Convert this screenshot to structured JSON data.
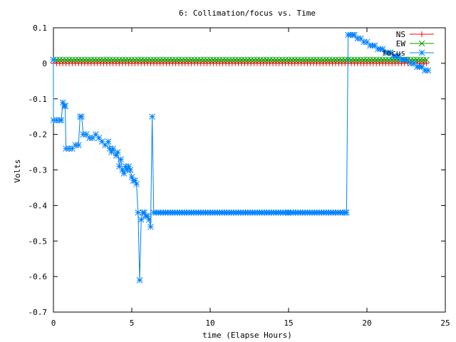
{
  "chart_data": {
    "type": "line",
    "title": "6: Collimation/focus vs. Time",
    "xlabel": "time (Elapse Hours)",
    "ylabel": "Volts",
    "xlim": [
      0,
      25
    ],
    "ylim": [
      -0.7,
      0.1
    ],
    "x_ticks": [
      0,
      5,
      10,
      15,
      20,
      25
    ],
    "x_tick_labels": [
      "0",
      "5",
      "10",
      "15",
      "20",
      "25"
    ],
    "y_ticks": [
      0.1,
      0,
      -0.1,
      -0.2,
      -0.3,
      -0.4,
      -0.5,
      -0.6,
      -0.7
    ],
    "y_tick_labels": [
      "0.1",
      "0",
      "-0.1",
      "-0.2",
      "-0.3",
      "-0.4",
      "-0.5",
      "-0.6",
      "-0.7"
    ],
    "grid": false,
    "legend_position": "top-right",
    "series": [
      {
        "name": "NS",
        "color": "#ff0000",
        "marker": "plus",
        "x": [
          0.0,
          23.9
        ],
        "y": [
          0.0,
          0.0
        ],
        "marker_step": 0.2
      },
      {
        "name": "EW",
        "color": "#00a000",
        "marker": "cross",
        "x": [
          0.0,
          23.9
        ],
        "y": [
          0.01,
          0.01
        ],
        "marker_step": 0.2
      },
      {
        "name": "focus",
        "color": "#0080ff",
        "marker": "star",
        "points": [
          [
            0.0,
            0.01
          ],
          [
            0.0,
            -0.16
          ],
          [
            0.2,
            -0.16
          ],
          [
            0.4,
            -0.16
          ],
          [
            0.5,
            -0.16
          ],
          [
            0.6,
            -0.11
          ],
          [
            0.7,
            -0.12
          ],
          [
            0.75,
            -0.12
          ],
          [
            0.8,
            -0.24
          ],
          [
            1.0,
            -0.24
          ],
          [
            1.2,
            -0.24
          ],
          [
            1.4,
            -0.23
          ],
          [
            1.6,
            -0.23
          ],
          [
            1.7,
            -0.15
          ],
          [
            1.8,
            -0.15
          ],
          [
            1.9,
            -0.2
          ],
          [
            2.1,
            -0.2
          ],
          [
            2.3,
            -0.21
          ],
          [
            2.5,
            -0.21
          ],
          [
            2.7,
            -0.2
          ],
          [
            2.9,
            -0.21
          ],
          [
            3.1,
            -0.22
          ],
          [
            3.3,
            -0.23
          ],
          [
            3.5,
            -0.22
          ],
          [
            3.6,
            -0.24
          ],
          [
            3.7,
            -0.25
          ],
          [
            3.8,
            -0.24
          ],
          [
            4.0,
            -0.26
          ],
          [
            4.1,
            -0.25
          ],
          [
            4.2,
            -0.29
          ],
          [
            4.3,
            -0.27
          ],
          [
            4.4,
            -0.3
          ],
          [
            4.5,
            -0.31
          ],
          [
            4.6,
            -0.29
          ],
          [
            4.7,
            -0.3
          ],
          [
            4.8,
            -0.29
          ],
          [
            4.9,
            -0.3
          ],
          [
            5.0,
            -0.32
          ],
          [
            5.1,
            -0.33
          ],
          [
            5.2,
            -0.33
          ],
          [
            5.3,
            -0.34
          ],
          [
            5.4,
            -0.42
          ],
          [
            5.5,
            -0.61
          ],
          [
            5.6,
            -0.44
          ],
          [
            5.7,
            -0.42
          ],
          [
            5.8,
            -0.42
          ],
          [
            5.9,
            -0.43
          ],
          [
            6.0,
            -0.43
          ],
          [
            6.1,
            -0.44
          ],
          [
            6.2,
            -0.46
          ],
          [
            6.3,
            -0.15
          ],
          [
            6.4,
            -0.42
          ],
          [
            7.0,
            -0.42
          ],
          [
            10.0,
            -0.42
          ],
          [
            15.0,
            -0.42
          ],
          [
            18.7,
            -0.42
          ],
          [
            18.8,
            0.08
          ],
          [
            19.2,
            0.08
          ],
          [
            19.4,
            0.07
          ],
          [
            19.6,
            0.07
          ],
          [
            19.8,
            0.06
          ],
          [
            20.0,
            0.06
          ],
          [
            20.2,
            0.05
          ],
          [
            20.5,
            0.05
          ],
          [
            20.7,
            0.04
          ],
          [
            21.0,
            0.04
          ],
          [
            21.2,
            0.03
          ],
          [
            21.5,
            0.03
          ],
          [
            21.7,
            0.02
          ],
          [
            22.0,
            0.02
          ],
          [
            22.2,
            0.01
          ],
          [
            22.5,
            0.01
          ],
          [
            22.8,
            0.0
          ],
          [
            23.0,
            0.0
          ],
          [
            23.2,
            -0.01
          ],
          [
            23.5,
            -0.01
          ],
          [
            23.7,
            -0.02
          ],
          [
            23.9,
            -0.02
          ]
        ]
      }
    ]
  }
}
